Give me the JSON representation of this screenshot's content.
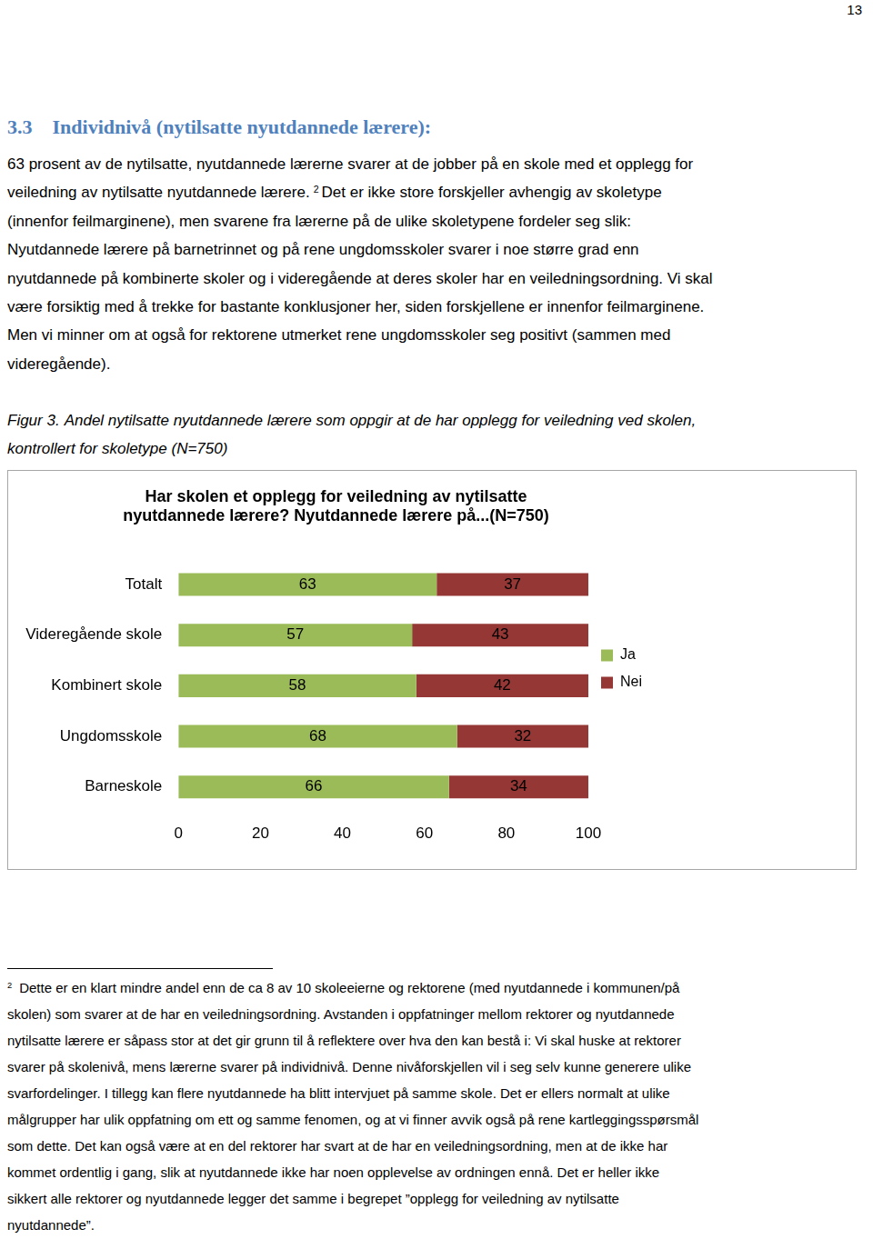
{
  "page_number": "13",
  "heading": {
    "number": "3.3",
    "text": "Individnivå (nytilsatte nyutdannede lærere):"
  },
  "body_lines": [
    [
      {
        "text": "63 prosent av de nytilsatte, nyutdannede lærerne svarer at de jobber på en skole med et opplegg for"
      }
    ],
    [
      {
        "text": "veiledning av nytilsatte nyutdannede lærere."
      },
      {
        "sup": "2"
      },
      {
        "text": "Det er ikke store forskjeller avhengig av skoletype"
      }
    ],
    [
      {
        "text": "(innenfor feilmarginene), men svarene fra lærerne på de ulike skoletypene fordeler seg slik:"
      }
    ],
    [
      {
        "text": "Nyutdannede lærere på barnetrinnet og på rene ungdomsskoler svarer i noe større grad enn"
      }
    ],
    [
      {
        "text": "nyutdannede på kombinerte skoler og i videregående at deres skoler har en veiledningsordning. Vi skal"
      }
    ],
    [
      {
        "text": "være forsiktig med å trekke for bastante konklusjoner her, siden forskjellene er innenfor feilmarginene."
      }
    ],
    [
      {
        "text": "Men vi minner om at også for rektorene utmerket rene ungdomsskoler seg positivt (sammen med"
      }
    ],
    [
      {
        "text": "videregående)."
      }
    ]
  ],
  "figure_caption": {
    "label": "Figur 3.",
    "lines": [
      "Andel nytilsatte nyutdannede lærere som oppgir at de har opplegg for veiledning ved skolen,",
      "kontrollert for skoletype (N=750)"
    ]
  },
  "chart_data": {
    "type": "bar",
    "orientation": "horizontal",
    "stacked": true,
    "title": [
      "Har skolen et opplegg for veiledning av nytilsatte",
      "nyutdannede lærere? Nyutdannede lærere på...(N=750)"
    ],
    "categories": [
      "Totalt",
      "Videregående skole",
      "Kombinert skole",
      "Ungdomsskole",
      "Barneskole"
    ],
    "series": [
      {
        "name": "Ja",
        "color": "#9bbb59",
        "values": [
          63,
          57,
          58,
          68,
          66
        ]
      },
      {
        "name": "Nei",
        "color": "#953735",
        "values": [
          37,
          43,
          42,
          32,
          34
        ]
      }
    ],
    "xlim": [
      0,
      100
    ],
    "xticks": [
      0,
      20,
      40,
      60,
      80,
      100
    ],
    "grid": false,
    "legend": "right",
    "data_labels": true
  },
  "footnote": {
    "marker": "2",
    "lines": [
      "Dette er en klart mindre andel enn de ca 8 av 10 skoleeierne og rektorene (med nyutdannede i kommunen/på",
      "skolen) som svarer at de har en veiledningsordning. Avstanden i oppfatninger mellom rektorer og nyutdannede",
      "nytilsatte lærere er såpass stor at det gir grunn til å reflektere over hva den kan bestå i:  Vi skal huske at rektorer",
      "svarer på skolenivå, mens lærerne svarer på individnivå. Denne nivåforskjellen vil i seg selv kunne generere ulike",
      "svarfordelinger. I tillegg kan flere nyutdannede ha blitt intervjuet på samme skole. Det er ellers normalt at ulike",
      "målgrupper har ulik oppfatning om ett og samme fenomen, og at vi finner avvik også på rene kartleggingsspørsmål",
      "som dette. Det kan også være at en del rektorer har svart at de har en veiledningsordning, men at de ikke har",
      "kommet ordentlig i gang, slik at nyutdannede ikke har noen opplevelse av ordningen ennå. Det er heller ikke",
      "sikkert alle rektorer og nyutdannede legger det samme i begrepet ”opplegg for veiledning av nytilsatte",
      "nyutdannede”."
    ]
  }
}
